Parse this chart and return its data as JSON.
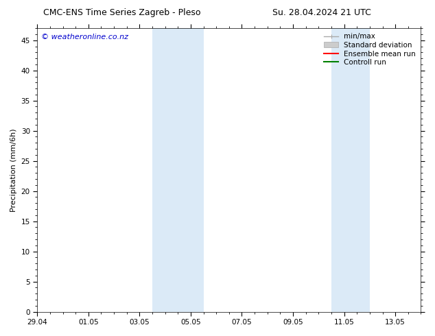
{
  "title_left": "CMC-ENS Time Series Zagreb - Pleso",
  "title_right": "Su. 28.04.2024 21 UTC",
  "ylabel": "Precipitation (mm/6h)",
  "watermark": "© weatheronline.co.nz",
  "watermark_color": "#0000cc",
  "background_color": "#ffffff",
  "plot_bg_color": "#ffffff",
  "ylim": [
    0,
    47
  ],
  "yticks": [
    0,
    5,
    10,
    15,
    20,
    25,
    30,
    35,
    40,
    45
  ],
  "xlim": [
    0,
    15
  ],
  "x_tick_labels": [
    "29.04",
    "01.05",
    "03.05",
    "05.05",
    "07.05",
    "09.05",
    "11.05",
    "13.05"
  ],
  "x_tick_positions": [
    0,
    2,
    4,
    6,
    8,
    10,
    12,
    14
  ],
  "shaded_bands": [
    {
      "x_start": 4.5,
      "x_end": 5.5,
      "color": "#dbeaf7"
    },
    {
      "x_start": 5.5,
      "x_end": 6.5,
      "color": "#dbeaf7"
    },
    {
      "x_start": 11.5,
      "x_end": 12.5,
      "color": "#dbeaf7"
    },
    {
      "x_start": 12.5,
      "x_end": 13.0,
      "color": "#dbeaf7"
    }
  ],
  "legend_entries": [
    {
      "label": "min/max",
      "type": "minmax",
      "color": "#aaaaaa"
    },
    {
      "label": "Standard deviation",
      "type": "stddev",
      "color": "#cccccc"
    },
    {
      "label": "Ensemble mean run",
      "type": "line",
      "color": "#ff0000"
    },
    {
      "label": "Controll run",
      "type": "line",
      "color": "#008000"
    }
  ],
  "title_fontsize": 9,
  "axis_label_fontsize": 8,
  "tick_fontsize": 7.5,
  "legend_fontsize": 7.5,
  "watermark_fontsize": 8
}
